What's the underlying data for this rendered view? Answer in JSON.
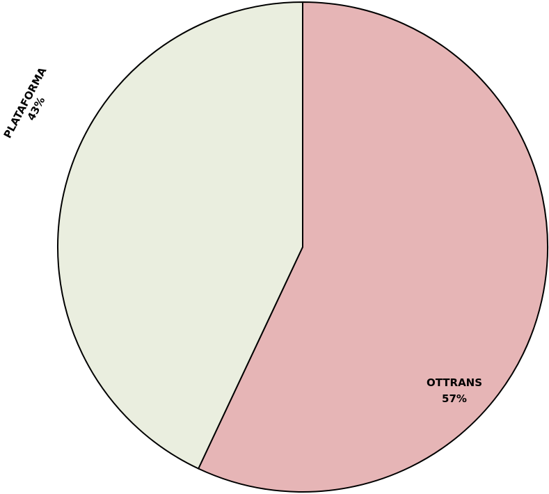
{
  "chart_data": {
    "type": "pie",
    "title": "",
    "slices": [
      {
        "label": "OTTRANS",
        "percent_text": "57%",
        "value": 57,
        "color": "#e6b5b6"
      },
      {
        "label": "PLATAFORMA",
        "percent_text": "43%",
        "value": 43,
        "color": "#eaeedf"
      }
    ],
    "start_angle_deg": 0,
    "direction": "clockwise",
    "outline_color": "#000000",
    "legend": "none"
  }
}
